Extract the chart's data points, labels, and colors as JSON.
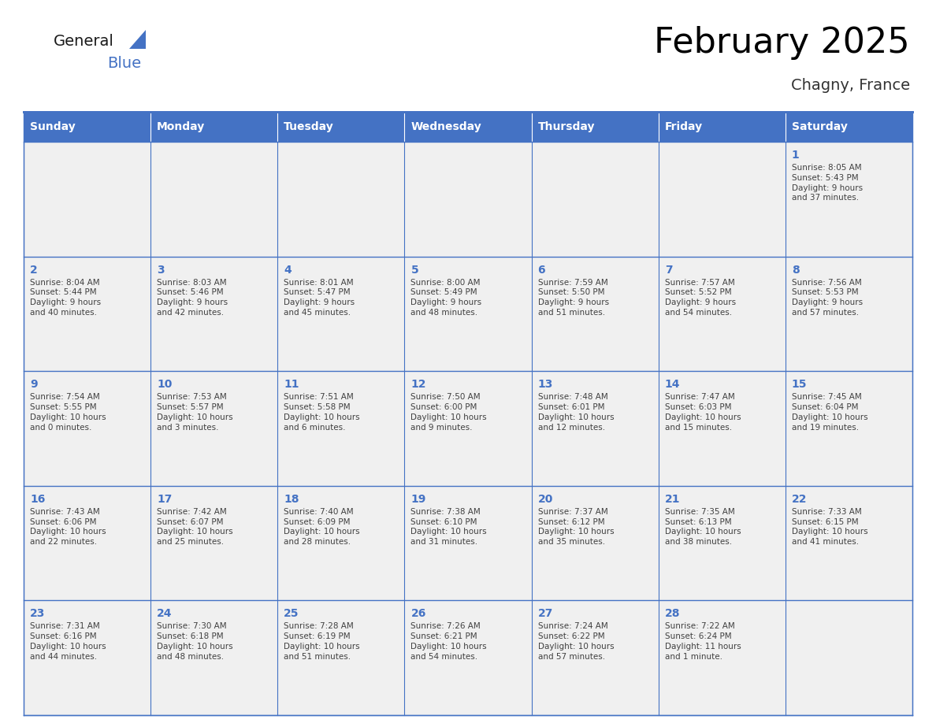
{
  "title": "February 2025",
  "subtitle": "Chagny, France",
  "header_color": "#4472C4",
  "header_text_color": "#FFFFFF",
  "cell_bg_color": "#F0F0F0",
  "cell_border_color": "#4472C4",
  "day_num_color": "#4472C4",
  "text_color": "#404040",
  "days_of_week": [
    "Sunday",
    "Monday",
    "Tuesday",
    "Wednesday",
    "Thursday",
    "Friday",
    "Saturday"
  ],
  "weeks": [
    [
      {
        "day": "",
        "info": ""
      },
      {
        "day": "",
        "info": ""
      },
      {
        "day": "",
        "info": ""
      },
      {
        "day": "",
        "info": ""
      },
      {
        "day": "",
        "info": ""
      },
      {
        "day": "",
        "info": ""
      },
      {
        "day": "1",
        "info": "Sunrise: 8:05 AM\nSunset: 5:43 PM\nDaylight: 9 hours\nand 37 minutes."
      }
    ],
    [
      {
        "day": "2",
        "info": "Sunrise: 8:04 AM\nSunset: 5:44 PM\nDaylight: 9 hours\nand 40 minutes."
      },
      {
        "day": "3",
        "info": "Sunrise: 8:03 AM\nSunset: 5:46 PM\nDaylight: 9 hours\nand 42 minutes."
      },
      {
        "day": "4",
        "info": "Sunrise: 8:01 AM\nSunset: 5:47 PM\nDaylight: 9 hours\nand 45 minutes."
      },
      {
        "day": "5",
        "info": "Sunrise: 8:00 AM\nSunset: 5:49 PM\nDaylight: 9 hours\nand 48 minutes."
      },
      {
        "day": "6",
        "info": "Sunrise: 7:59 AM\nSunset: 5:50 PM\nDaylight: 9 hours\nand 51 minutes."
      },
      {
        "day": "7",
        "info": "Sunrise: 7:57 AM\nSunset: 5:52 PM\nDaylight: 9 hours\nand 54 minutes."
      },
      {
        "day": "8",
        "info": "Sunrise: 7:56 AM\nSunset: 5:53 PM\nDaylight: 9 hours\nand 57 minutes."
      }
    ],
    [
      {
        "day": "9",
        "info": "Sunrise: 7:54 AM\nSunset: 5:55 PM\nDaylight: 10 hours\nand 0 minutes."
      },
      {
        "day": "10",
        "info": "Sunrise: 7:53 AM\nSunset: 5:57 PM\nDaylight: 10 hours\nand 3 minutes."
      },
      {
        "day": "11",
        "info": "Sunrise: 7:51 AM\nSunset: 5:58 PM\nDaylight: 10 hours\nand 6 minutes."
      },
      {
        "day": "12",
        "info": "Sunrise: 7:50 AM\nSunset: 6:00 PM\nDaylight: 10 hours\nand 9 minutes."
      },
      {
        "day": "13",
        "info": "Sunrise: 7:48 AM\nSunset: 6:01 PM\nDaylight: 10 hours\nand 12 minutes."
      },
      {
        "day": "14",
        "info": "Sunrise: 7:47 AM\nSunset: 6:03 PM\nDaylight: 10 hours\nand 15 minutes."
      },
      {
        "day": "15",
        "info": "Sunrise: 7:45 AM\nSunset: 6:04 PM\nDaylight: 10 hours\nand 19 minutes."
      }
    ],
    [
      {
        "day": "16",
        "info": "Sunrise: 7:43 AM\nSunset: 6:06 PM\nDaylight: 10 hours\nand 22 minutes."
      },
      {
        "day": "17",
        "info": "Sunrise: 7:42 AM\nSunset: 6:07 PM\nDaylight: 10 hours\nand 25 minutes."
      },
      {
        "day": "18",
        "info": "Sunrise: 7:40 AM\nSunset: 6:09 PM\nDaylight: 10 hours\nand 28 minutes."
      },
      {
        "day": "19",
        "info": "Sunrise: 7:38 AM\nSunset: 6:10 PM\nDaylight: 10 hours\nand 31 minutes."
      },
      {
        "day": "20",
        "info": "Sunrise: 7:37 AM\nSunset: 6:12 PM\nDaylight: 10 hours\nand 35 minutes."
      },
      {
        "day": "21",
        "info": "Sunrise: 7:35 AM\nSunset: 6:13 PM\nDaylight: 10 hours\nand 38 minutes."
      },
      {
        "day": "22",
        "info": "Sunrise: 7:33 AM\nSunset: 6:15 PM\nDaylight: 10 hours\nand 41 minutes."
      }
    ],
    [
      {
        "day": "23",
        "info": "Sunrise: 7:31 AM\nSunset: 6:16 PM\nDaylight: 10 hours\nand 44 minutes."
      },
      {
        "day": "24",
        "info": "Sunrise: 7:30 AM\nSunset: 6:18 PM\nDaylight: 10 hours\nand 48 minutes."
      },
      {
        "day": "25",
        "info": "Sunrise: 7:28 AM\nSunset: 6:19 PM\nDaylight: 10 hours\nand 51 minutes."
      },
      {
        "day": "26",
        "info": "Sunrise: 7:26 AM\nSunset: 6:21 PM\nDaylight: 10 hours\nand 54 minutes."
      },
      {
        "day": "27",
        "info": "Sunrise: 7:24 AM\nSunset: 6:22 PM\nDaylight: 10 hours\nand 57 minutes."
      },
      {
        "day": "28",
        "info": "Sunrise: 7:22 AM\nSunset: 6:24 PM\nDaylight: 11 hours\nand 1 minute."
      },
      {
        "day": "",
        "info": ""
      }
    ]
  ],
  "logo_text1": "General",
  "logo_text2": "Blue",
  "logo_triangle_color": "#4472C4",
  "logo_text1_color": "#1a1a1a",
  "title_fontsize": 32,
  "subtitle_fontsize": 14,
  "header_fontsize": 10,
  "day_num_fontsize": 10,
  "cell_text_fontsize": 7.5
}
